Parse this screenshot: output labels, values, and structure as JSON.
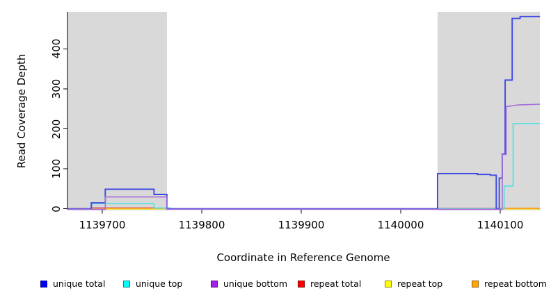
{
  "chart_data": {
    "type": "line",
    "title": "",
    "xlabel": "Coordinate in Reference Genome",
    "ylabel": "Read Coverage Depth",
    "xlim": [
      1139665,
      1140140
    ],
    "ylim": [
      0,
      493
    ],
    "x_ticks": [
      1139700,
      1139800,
      1139900,
      1140000,
      1140100
    ],
    "y_ticks": [
      0,
      100,
      200,
      300,
      400
    ],
    "grid": "off",
    "legend_position": "bottom",
    "plot_background": "#ffffff",
    "shaded_regions": [
      {
        "from": 1139665,
        "to": 1139765,
        "color": "#d9d9d9"
      },
      {
        "from": 1140037,
        "to": 1140140,
        "color": "#d9d9d9"
      }
    ],
    "series": [
      {
        "name": "repeat top",
        "color": "#f2f20a",
        "points": [
          [
            1139665,
            0
          ],
          [
            1140140,
            0
          ]
        ]
      },
      {
        "name": "repeat total",
        "color": "#c75d87",
        "points": [
          [
            1139665,
            0
          ],
          [
            1139690,
            0
          ],
          [
            1139690,
            2
          ],
          [
            1139767,
            2
          ],
          [
            1139767,
            0
          ],
          [
            1140037,
            0
          ],
          [
            1140037,
            1
          ],
          [
            1140140,
            1
          ]
        ]
      },
      {
        "name": "repeat bottom",
        "color": "#ffa420",
        "points": [
          [
            1139665,
            0
          ],
          [
            1139704,
            0
          ],
          [
            1139704,
            1
          ],
          [
            1139768,
            1
          ],
          [
            1139768,
            0
          ],
          [
            1140099,
            0
          ],
          [
            1140099,
            1
          ],
          [
            1140140,
            1
          ]
        ]
      },
      {
        "name": "unique top",
        "color": "#62e0de",
        "points": [
          [
            1139665,
            0
          ],
          [
            1139689,
            0
          ],
          [
            1139689,
            13
          ],
          [
            1139752,
            13
          ],
          [
            1139752,
            2
          ],
          [
            1139768,
            2
          ],
          [
            1139768,
            0
          ],
          [
            1140104,
            0
          ],
          [
            1140104,
            57
          ],
          [
            1140113,
            57
          ],
          [
            1140113,
            213
          ],
          [
            1140140,
            213
          ]
        ]
      },
      {
        "name": "unique total",
        "color": "#3d49e2",
        "points": [
          [
            1139665,
            0
          ],
          [
            1139689,
            0
          ],
          [
            1139689,
            15
          ],
          [
            1139703,
            15
          ],
          [
            1139703,
            49
          ],
          [
            1139752,
            49
          ],
          [
            1139752,
            36
          ],
          [
            1139765,
            36
          ],
          [
            1139765,
            0
          ],
          [
            1140037,
            0
          ],
          [
            1140037,
            88
          ],
          [
            1140077,
            88
          ],
          [
            1140077,
            86
          ],
          [
            1140090,
            86
          ],
          [
            1140090,
            84
          ],
          [
            1140096,
            84
          ],
          [
            1140096,
            0
          ],
          [
            1140099,
            0
          ],
          [
            1140099,
            77
          ],
          [
            1140102,
            77
          ],
          [
            1140102,
            137
          ],
          [
            1140105,
            137
          ],
          [
            1140105,
            322
          ],
          [
            1140112,
            322
          ],
          [
            1140112,
            476
          ],
          [
            1140120,
            476
          ],
          [
            1140120,
            481
          ],
          [
            1140140,
            481
          ]
        ]
      },
      {
        "name": "unique bottom",
        "color": "#a66bdc",
        "points": [
          [
            1139665,
            0
          ],
          [
            1139703,
            0
          ],
          [
            1139703,
            31
          ],
          [
            1139765,
            31
          ],
          [
            1139765,
            0
          ],
          [
            1140102,
            0
          ],
          [
            1140102,
            137
          ],
          [
            1140106,
            137
          ],
          [
            1140106,
            257
          ],
          [
            1140118,
            261
          ],
          [
            1140140,
            263
          ]
        ]
      }
    ],
    "legend": [
      {
        "label": "unique total",
        "fill": "#0000ff",
        "border": "#00008b"
      },
      {
        "label": "unique top",
        "fill": "#00ffff",
        "border": "#008b8b"
      },
      {
        "label": "unique bottom",
        "fill": "#a020f0",
        "border": "#5a0d8a"
      },
      {
        "label": "repeat total",
        "fill": "#ff0000",
        "border": "#7a0000"
      },
      {
        "label": "repeat top",
        "fill": "#ffff00",
        "border": "#8a8a00"
      },
      {
        "label": "repeat bottom",
        "fill": "#ffa500",
        "border": "#8a5a00"
      }
    ]
  }
}
